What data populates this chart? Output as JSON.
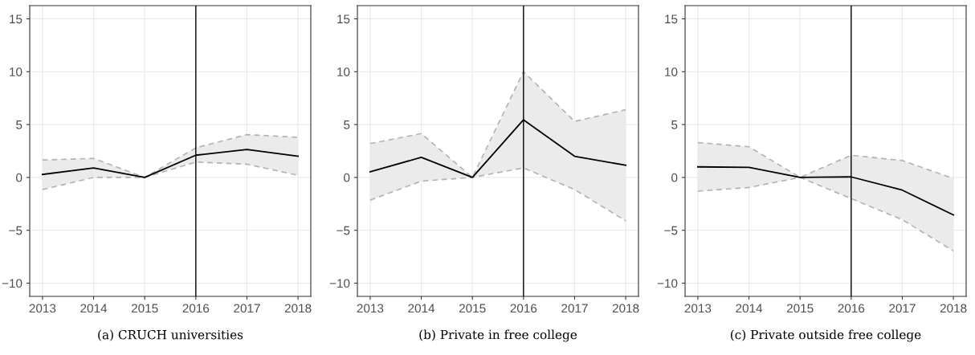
{
  "chart_data": [
    {
      "type": "line",
      "title": "(a) CRUCH universities",
      "x": [
        2013,
        2014,
        2015,
        2016,
        2017,
        2018
      ],
      "xlim": [
        2012.75,
        2018.25
      ],
      "xticks": [
        2013,
        2014,
        2015,
        2016,
        2017,
        2018
      ],
      "ylim": [
        -11.25,
        16.25
      ],
      "yticks": [
        -10,
        -5,
        0,
        5,
        10,
        15
      ],
      "grid": true,
      "series": [
        {
          "color": "#000000",
          "values": [
            0.28,
            0.9,
            0,
            2.1,
            2.65,
            2.0
          ],
          "lower": [
            -1.15,
            0,
            0,
            1.45,
            1.25,
            0.2
          ],
          "upper": [
            1.65,
            1.8,
            0,
            2.8,
            4.05,
            3.8
          ]
        },
        {
          "color": "#b3b3b3",
          "line_style": "dashed",
          "values": [
            -1.15,
            0,
            0,
            1.45,
            1.25,
            0.2
          ]
        },
        {
          "color": "#b3b3b3",
          "line_style": "dashed",
          "values": [
            1.65,
            1.8,
            0,
            2.8,
            4.05,
            3.8
          ]
        }
      ],
      "ref_lines": [
        {
          "axis": "x",
          "value": 2016,
          "color": "#000000"
        }
      ]
    },
    {
      "type": "line",
      "title": "(b) Private in free college",
      "x": [
        2013,
        2014,
        2015,
        2016,
        2017,
        2018
      ],
      "xlim": [
        2012.75,
        2018.25
      ],
      "xticks": [
        2013,
        2014,
        2015,
        2016,
        2017,
        2018
      ],
      "ylim": [
        -11.25,
        16.25
      ],
      "yticks": [
        -10,
        -5,
        0,
        5,
        10,
        15
      ],
      "grid": true,
      "series": [
        {
          "color": "#000000",
          "values": [
            0.53,
            1.9,
            0,
            5.45,
            2.0,
            1.15
          ],
          "lower": [
            -2.15,
            -0.35,
            0,
            0.9,
            -1.15,
            -4.1
          ],
          "upper": [
            3.2,
            4.15,
            0,
            10.0,
            5.3,
            6.4
          ]
        },
        {
          "color": "#b3b3b3",
          "line_style": "dashed",
          "values": [
            -2.15,
            -0.35,
            0,
            0.9,
            -1.15,
            -4.1
          ]
        },
        {
          "color": "#b3b3b3",
          "line_style": "dashed",
          "values": [
            3.2,
            4.15,
            0,
            10.0,
            5.3,
            6.4
          ]
        }
      ],
      "ref_lines": [
        {
          "axis": "x",
          "value": 2016,
          "color": "#000000"
        }
      ]
    },
    {
      "type": "line",
      "title": "(c) Private outside free college",
      "x": [
        2013,
        2014,
        2015,
        2016,
        2017,
        2018
      ],
      "xlim": [
        2012.75,
        2018.25
      ],
      "xticks": [
        2013,
        2014,
        2015,
        2016,
        2017,
        2018
      ],
      "ylim": [
        -11.25,
        16.25
      ],
      "yticks": [
        -10,
        -5,
        0,
        5,
        10,
        15
      ],
      "grid": true,
      "series": [
        {
          "color": "#000000",
          "values": [
            1.0,
            0.95,
            0,
            0.05,
            -1.2,
            -3.55
          ],
          "lower": [
            -1.3,
            -0.95,
            0,
            -2.0,
            -4.0,
            -6.95
          ],
          "upper": [
            3.3,
            2.9,
            0,
            2.1,
            1.6,
            -0.1
          ]
        },
        {
          "color": "#b3b3b3",
          "line_style": "dashed",
          "values": [
            -1.3,
            -0.95,
            0,
            -2.0,
            -4.0,
            -6.95
          ]
        },
        {
          "color": "#b3b3b3",
          "line_style": "dashed",
          "values": [
            3.3,
            2.9,
            0,
            2.1,
            1.6,
            -0.1
          ]
        }
      ],
      "ref_lines": [
        {
          "axis": "x",
          "value": 2016,
          "color": "#000000"
        }
      ]
    }
  ]
}
